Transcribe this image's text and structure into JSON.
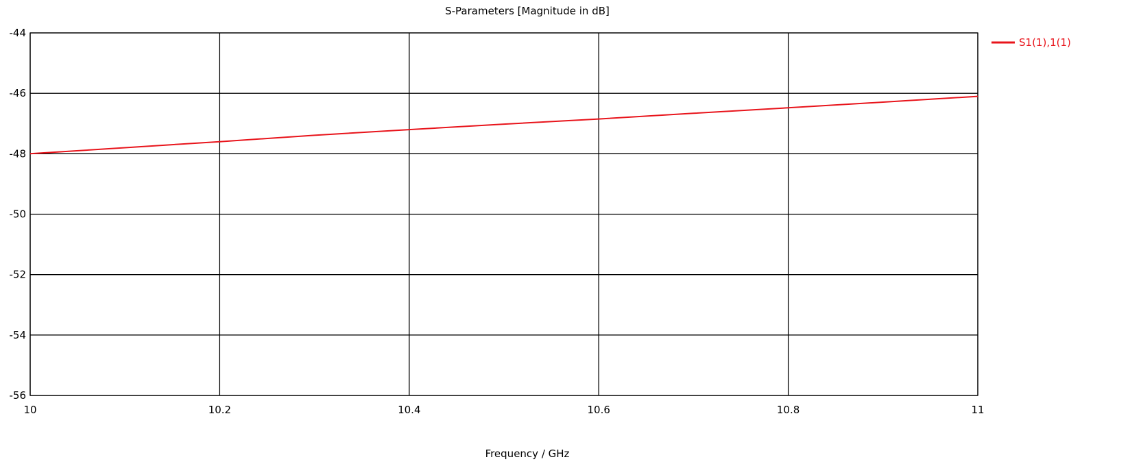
{
  "chart_data": {
    "type": "line",
    "title": "S-Parameters [Magnitude in dB]",
    "xlabel": "Frequency / GHz",
    "ylabel": "",
    "xlim": [
      10,
      11
    ],
    "ylim": [
      -56,
      -44
    ],
    "xticks": [
      10,
      10.2,
      10.4,
      10.6,
      10.8,
      11
    ],
    "xtick_labels": [
      "10",
      "10.2",
      "10.4",
      "10.6",
      "10.8",
      "11"
    ],
    "yticks": [
      -56,
      -54,
      -52,
      -50,
      -48,
      -46,
      -44
    ],
    "ytick_labels": [
      "-56",
      "-54",
      "-52",
      "-50",
      "-48",
      "-46",
      "-44"
    ],
    "grid": true,
    "legend_position": "top-right outside",
    "series": [
      {
        "name": "S1(1),1(1)",
        "color": "#e8141b",
        "x": [
          10,
          10.1,
          10.2,
          10.3,
          10.4,
          10.5,
          10.6,
          10.7,
          10.8,
          10.9,
          11
        ],
        "y": [
          -48.0,
          -47.8,
          -47.6,
          -47.39,
          -47.2,
          -47.02,
          -46.85,
          -46.66,
          -46.48,
          -46.29,
          -46.1
        ]
      }
    ]
  }
}
